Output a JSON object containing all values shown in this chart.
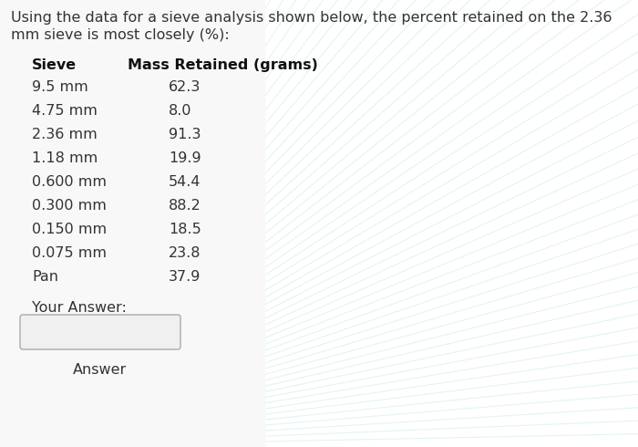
{
  "title_line1": "Using the data for a sieve analysis shown below, the percent retained on the 2.36",
  "title_line2": "mm sieve is most closely (%):",
  "col_header_sieve": "Sieve",
  "col_header_mass": "Mass Retained (grams)",
  "sieves": [
    "9.5 mm",
    "4.75 mm",
    "2.36 mm",
    "1.18 mm",
    "0.600 mm",
    "0.300 mm",
    "0.150 mm",
    "0.075 mm",
    "Pan"
  ],
  "masses": [
    "62.3",
    "8.0",
    "91.3",
    "19.9",
    "54.4",
    "88.2",
    "18.5",
    "23.8",
    "37.9"
  ],
  "your_answer_label": "Your Answer:",
  "answer_button_label": "Answer",
  "bg_color": "#e8eef0",
  "left_bg_color": "#f5f5f5",
  "text_color": "#333333",
  "header_color": "#111111",
  "title_fontsize": 11.5,
  "header_fontsize": 11.5,
  "row_fontsize": 11.5,
  "answer_fontsize": 11.5,
  "button_fontsize": 11.5
}
